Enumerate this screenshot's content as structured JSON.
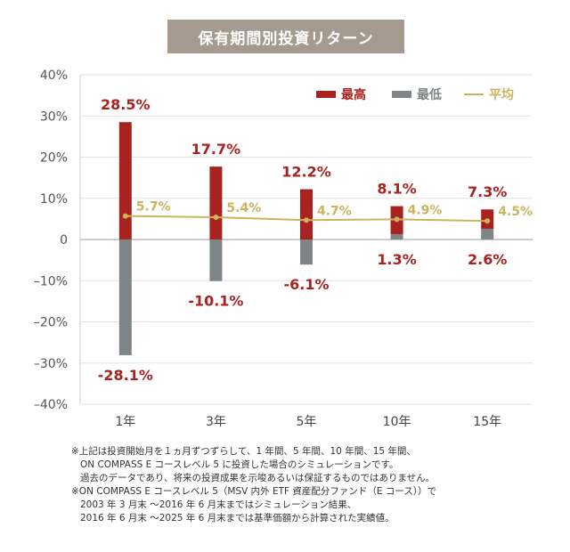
{
  "title": "保有期間別投資リターン",
  "chart_data": {
    "type": "bar",
    "categories": [
      "1年",
      "3年",
      "5年",
      "10年",
      "15年"
    ],
    "series": [
      {
        "name": "最高",
        "values": [
          28.5,
          17.7,
          12.2,
          8.1,
          7.3
        ],
        "color": "#a8231f"
      },
      {
        "name": "最低",
        "values": [
          -28.1,
          -10.1,
          -6.1,
          1.3,
          2.6
        ],
        "color": "#7f8486"
      },
      {
        "name": "平均",
        "values": [
          5.7,
          5.4,
          4.7,
          4.9,
          4.5
        ],
        "color": "#c9b460",
        "type": "line"
      }
    ],
    "labels": {
      "max": [
        "28.5%",
        "17.7%",
        "12.2%",
        "8.1%",
        "7.3%"
      ],
      "min": [
        "-28.1%",
        "-10.1%",
        "-6.1%",
        "1.3%",
        "2.6%"
      ],
      "avg": [
        "5.7%",
        "5.4%",
        "4.7%",
        "4.9%",
        "4.5%"
      ]
    },
    "ylim": [
      -40,
      40
    ],
    "yticks": [
      40,
      30,
      20,
      10,
      0,
      -10,
      -20,
      -30,
      -40
    ],
    "ytick_labels": [
      "40%",
      "30%",
      "20%",
      "10%",
      "0",
      "–10%",
      "–20%",
      "–30%",
      "–40%"
    ],
    "legend": [
      "最高",
      "最低",
      "平均"
    ],
    "legend_position": "top-right",
    "grid": true
  },
  "notes": [
    "※上記は投資開始月を１ヵ月ずつずらして、1 年間、5 年間、10 年間、15 年間、",
    "ON COMPASS E コースレベル 5 に投資した場合のシミュレーションです。",
    "過去のデータであり、将来の投資成果を示唆あるいは保証するものではありません。",
    "※ON COMPASS E コースレベル 5（MSV 内外 ETF 資産配分ファンド（E コース））で",
    "2003 年 3 月末 ～2016 年 6 月末まではシミュレーション結果、",
    "2016 年 6 月末 ～2025 年 6 月末までは基準価額から計算された実績値。"
  ]
}
